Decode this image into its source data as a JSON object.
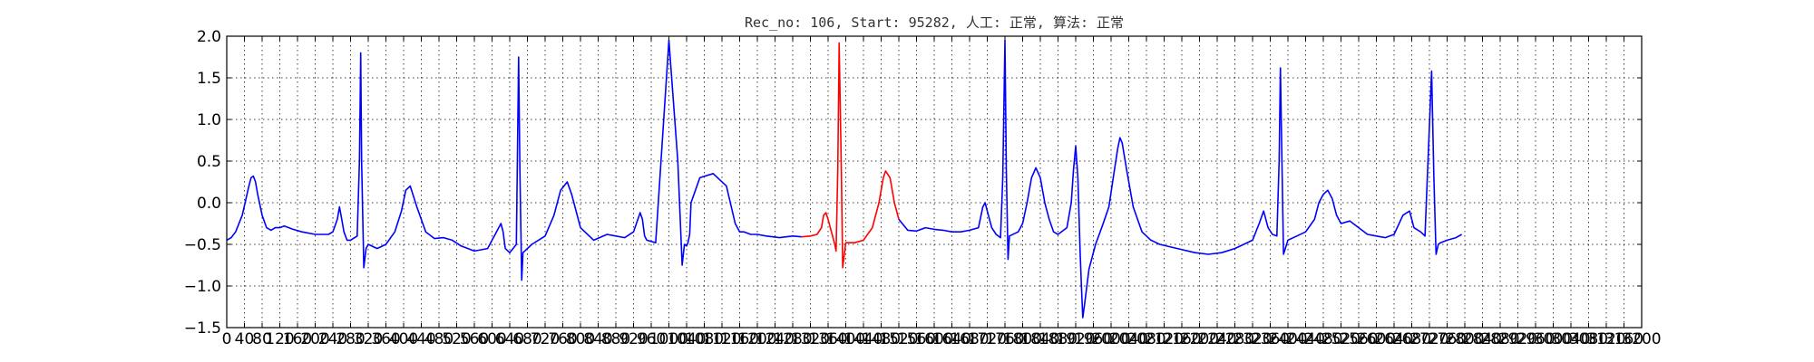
{
  "chart_data": {
    "type": "line",
    "title": "Rec_no: 106, Start: 95282, 人工: 正常, 算法: 正常",
    "xlabel": "",
    "ylabel": "",
    "xlim": [
      0,
      3200
    ],
    "ylim": [
      -1.5,
      2.0
    ],
    "grid": true,
    "colors": {
      "normal": "#0000ff",
      "highlight": "#ff0000"
    },
    "x_tick_values": [
      0,
      40,
      80,
      120,
      160,
      200,
      240,
      280,
      320,
      360,
      400,
      440,
      480,
      520,
      560,
      600,
      640,
      680,
      720,
      760,
      800,
      840,
      880,
      920,
      960,
      1000,
      1040,
      1080,
      1120,
      1160,
      1200,
      1240,
      1280,
      1320,
      1360,
      1400,
      1440,
      1480,
      1520,
      1560,
      1600,
      1640,
      1680,
      1720,
      1760,
      1800,
      1840,
      1880,
      1920,
      1960,
      2000,
      2040,
      2080,
      2120,
      2160,
      2200,
      2240,
      2280,
      2320,
      2360,
      2400,
      2440,
      2480,
      2520,
      2560,
      2600,
      2640,
      2680,
      2720,
      2760,
      2800,
      2840,
      2880,
      2920,
      2960,
      3000,
      3040,
      3080,
      3120,
      3160,
      3200
    ],
    "x_tick_labels": [
      "0",
      "40",
      "80",
      "120",
      "160",
      "200",
      "240",
      "280",
      "320",
      "360",
      "400",
      "440",
      "480",
      "520",
      "560",
      "600",
      "640",
      "680",
      "720",
      "760",
      "800",
      "840",
      "880",
      "920",
      "960",
      "1000",
      "1040",
      "1080",
      "1120",
      "1160",
      "1200",
      "1240",
      "1280",
      "1320",
      "1360",
      "1400",
      "1440",
      "1480",
      "1520",
      "1560",
      "1600",
      "1640",
      "1680",
      "1720",
      "1760",
      "1800",
      "1840",
      "1880",
      "1920",
      "1960",
      "2000",
      "2040",
      "2080",
      "2120",
      "2160",
      "2200",
      "2240",
      "2280",
      "2320",
      "2360",
      "2400",
      "2440",
      "2480",
      "2520",
      "2560",
      "2600",
      "2640",
      "2680",
      "2720",
      "2760",
      "2800",
      "2840",
      "2880",
      "2920",
      "2960",
      "3000",
      "3040",
      "3080",
      "3120",
      "3160",
      "3200"
    ],
    "y_tick_values": [
      -1.5,
      -1.0,
      -0.5,
      0.0,
      0.5,
      1.0,
      1.5,
      2.0
    ],
    "y_tick_labels": [
      "−1.5",
      "−1.0",
      "−0.5",
      "0.0",
      "0.5",
      "1.0",
      "1.5",
      "2.0"
    ],
    "series": [
      {
        "segment": "before",
        "color": "#0000ff",
        "x": [
          0,
          10,
          20,
          35,
          50,
          55,
          60,
          65,
          70,
          80,
          90,
          100,
          110,
          120,
          130,
          150,
          170,
          200,
          230,
          240,
          250,
          255,
          260,
          265,
          270,
          272,
          280,
          295,
          300,
          303,
          305,
          310,
          315,
          320,
          340,
          360,
          380,
          395,
          405,
          415,
          430,
          450,
          470,
          490,
          510,
          530,
          560,
          590,
          610,
          620,
          625,
          630,
          640,
          655,
          660,
          663,
          667,
          670,
          690,
          720,
          740,
          755,
          770,
          780,
          800,
          830,
          860,
          880,
          900,
          920,
          935,
          940,
          945,
          950,
          970,
          1000,
          1020,
          1030,
          1035,
          1040,
          1043,
          1047,
          1050,
          1070,
          1100,
          1130,
          1150,
          1160,
          1170,
          1185,
          1200,
          1220,
          1250,
          1280,
          1300
        ],
        "y": [
          -0.45,
          -0.42,
          -0.35,
          -0.15,
          0.2,
          0.3,
          0.32,
          0.25,
          0.1,
          -0.15,
          -0.3,
          -0.33,
          -0.3,
          -0.3,
          -0.28,
          -0.32,
          -0.35,
          -0.38,
          -0.38,
          -0.35,
          -0.2,
          -0.05,
          -0.2,
          -0.35,
          -0.42,
          -0.45,
          -0.45,
          -0.4,
          0.5,
          1.8,
          0.5,
          -0.78,
          -0.55,
          -0.5,
          -0.55,
          -0.5,
          -0.35,
          -0.1,
          0.15,
          0.2,
          -0.05,
          -0.35,
          -0.43,
          -0.42,
          -0.45,
          -0.52,
          -0.58,
          -0.55,
          -0.35,
          -0.25,
          -0.35,
          -0.55,
          -0.6,
          -0.5,
          1.75,
          0.4,
          -0.93,
          -0.6,
          -0.5,
          -0.4,
          -0.15,
          0.15,
          0.25,
          0.1,
          -0.3,
          -0.45,
          -0.38,
          -0.4,
          -0.42,
          -0.35,
          -0.12,
          -0.2,
          -0.4,
          -0.45,
          -0.48,
          1.95,
          0.5,
          -0.75,
          -0.5,
          -0.52,
          -0.48,
          -0.38,
          0.0,
          0.3,
          0.35,
          0.2,
          -0.25,
          -0.35,
          -0.35,
          -0.38,
          -0.38,
          -0.4,
          -0.42,
          -0.4,
          -0.41
        ]
      },
      {
        "segment": "highlight",
        "color": "#ff0000",
        "x": [
          1300,
          1320,
          1335,
          1345,
          1350,
          1355,
          1360,
          1370,
          1375,
          1378,
          1382,
          1385,
          1390,
          1393,
          1400,
          1420,
          1440,
          1460,
          1475,
          1485,
          1490,
          1500,
          1510,
          1520
        ],
        "y": [
          -0.41,
          -0.4,
          -0.38,
          -0.3,
          -0.15,
          -0.12,
          -0.2,
          -0.4,
          -0.5,
          -0.58,
          0.4,
          1.92,
          0.4,
          -0.78,
          -0.48,
          -0.48,
          -0.45,
          -0.3,
          0.0,
          0.3,
          0.38,
          0.3,
          0.0,
          -0.2
        ]
      },
      {
        "segment": "after",
        "color": "#0000ff",
        "x": [
          1520,
          1540,
          1560,
          1580,
          1600,
          1620,
          1640,
          1660,
          1680,
          1700,
          1710,
          1715,
          1720,
          1730,
          1740,
          1750,
          1755,
          1760,
          1763,
          1767,
          1770,
          1790,
          1800,
          1810,
          1820,
          1830,
          1840,
          1850,
          1860,
          1870,
          1880,
          1900,
          1910,
          1915,
          1920,
          1925,
          1930,
          1933,
          1936,
          1940,
          1950,
          1965,
          1980,
          1995,
          2005,
          2015,
          2020,
          2025,
          2035,
          2050,
          2070,
          2090,
          2110,
          2150,
          2190,
          2220,
          2250,
          2280,
          2300,
          2320,
          2335,
          2345,
          2355,
          2365,
          2375,
          2380,
          2383,
          2387,
          2390,
          2400,
          2420,
          2440,
          2460,
          2470,
          2480,
          2490,
          2500,
          2510,
          2520,
          2540,
          2560,
          2580,
          2600,
          2620,
          2640,
          2660,
          2675,
          2685,
          2700,
          2710,
          2725,
          2730,
          2735,
          2740,
          2745,
          2760,
          2780,
          2793
        ],
        "y": [
          -0.2,
          -0.33,
          -0.34,
          -0.3,
          -0.32,
          -0.33,
          -0.35,
          -0.35,
          -0.33,
          -0.3,
          -0.05,
          0.0,
          -0.1,
          -0.3,
          -0.38,
          -0.42,
          0.3,
          1.95,
          0.4,
          -0.68,
          -0.4,
          -0.35,
          -0.25,
          0.0,
          0.3,
          0.42,
          0.3,
          0.0,
          -0.2,
          -0.35,
          -0.38,
          -0.3,
          0.0,
          0.4,
          0.68,
          0.3,
          -0.6,
          -1.0,
          -1.38,
          -1.22,
          -0.8,
          -0.5,
          -0.28,
          -0.05,
          0.3,
          0.65,
          0.78,
          0.72,
          0.4,
          -0.05,
          -0.35,
          -0.45,
          -0.5,
          -0.55,
          -0.6,
          -0.62,
          -0.6,
          -0.55,
          -0.5,
          -0.45,
          -0.25,
          -0.1,
          -0.3,
          -0.38,
          -0.4,
          0.5,
          1.62,
          0.3,
          -0.62,
          -0.45,
          -0.4,
          -0.35,
          -0.2,
          0.0,
          0.1,
          0.15,
          0.05,
          -0.15,
          -0.25,
          -0.22,
          -0.3,
          -0.38,
          -0.4,
          -0.42,
          -0.38,
          -0.15,
          -0.1,
          -0.3,
          -0.35,
          -0.4,
          1.58,
          0.3,
          -0.62,
          -0.5,
          -0.48,
          -0.45,
          -0.42,
          -0.38
        ]
      }
    ]
  }
}
